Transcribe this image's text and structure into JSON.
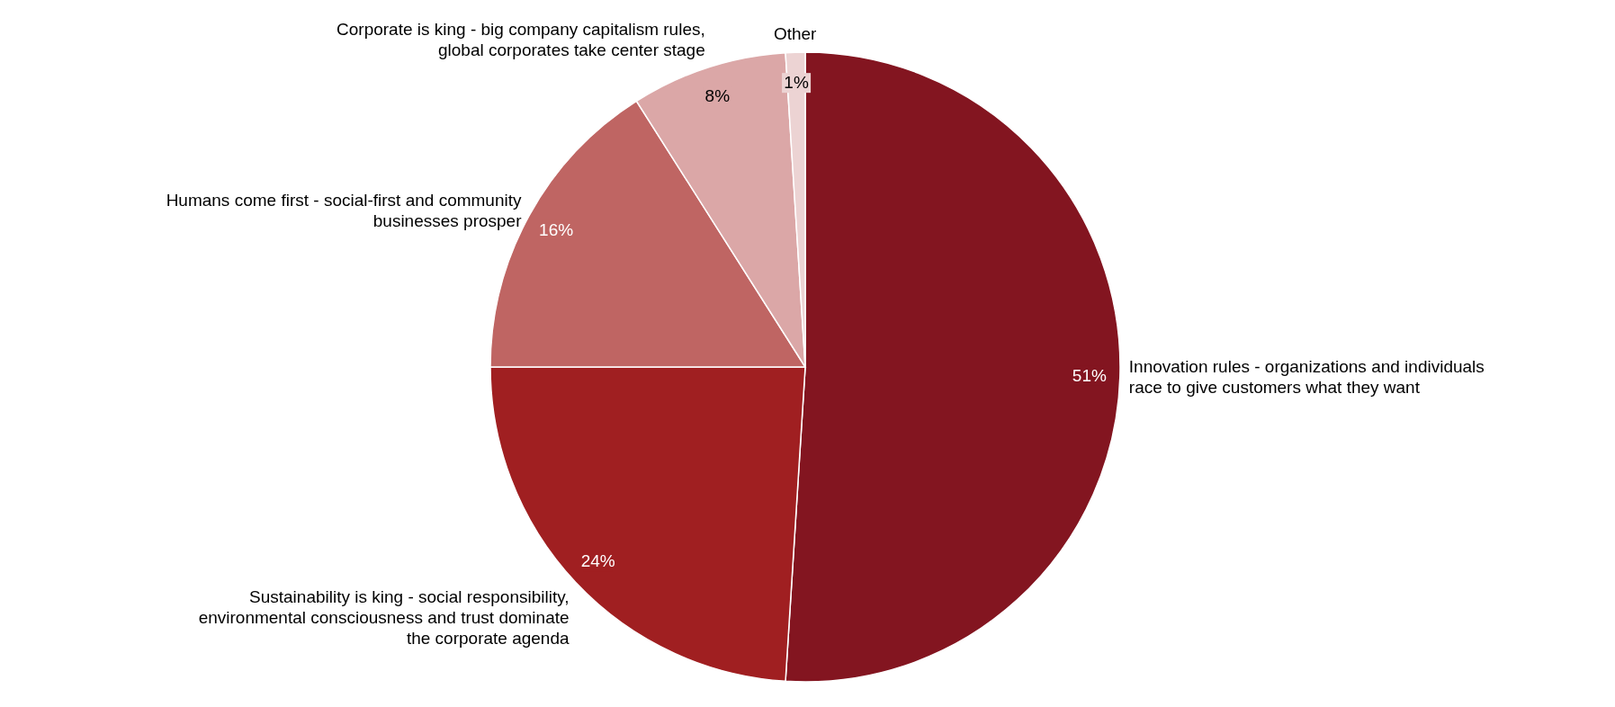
{
  "chart_data": {
    "type": "pie",
    "categories": [
      "Innovation rules - organizations and individuals race to give customers what they want",
      "Sustainability is king - social responsibility, environmental consciousness and trust dominate the corporate agenda",
      "Humans come first - social-first and community businesses prosper",
      "Corporate is king - big company capitalism rules, global corporates take center stage",
      "Other"
    ],
    "values": [
      51,
      24,
      16,
      8,
      1
    ],
    "colors": [
      "#831520",
      "#a01f21",
      "#bf6563",
      "#dba7a7",
      "#ecd3d3"
    ],
    "value_labels": [
      "51%",
      "24%",
      "16%",
      "8%",
      "1%"
    ],
    "legend": false
  }
}
